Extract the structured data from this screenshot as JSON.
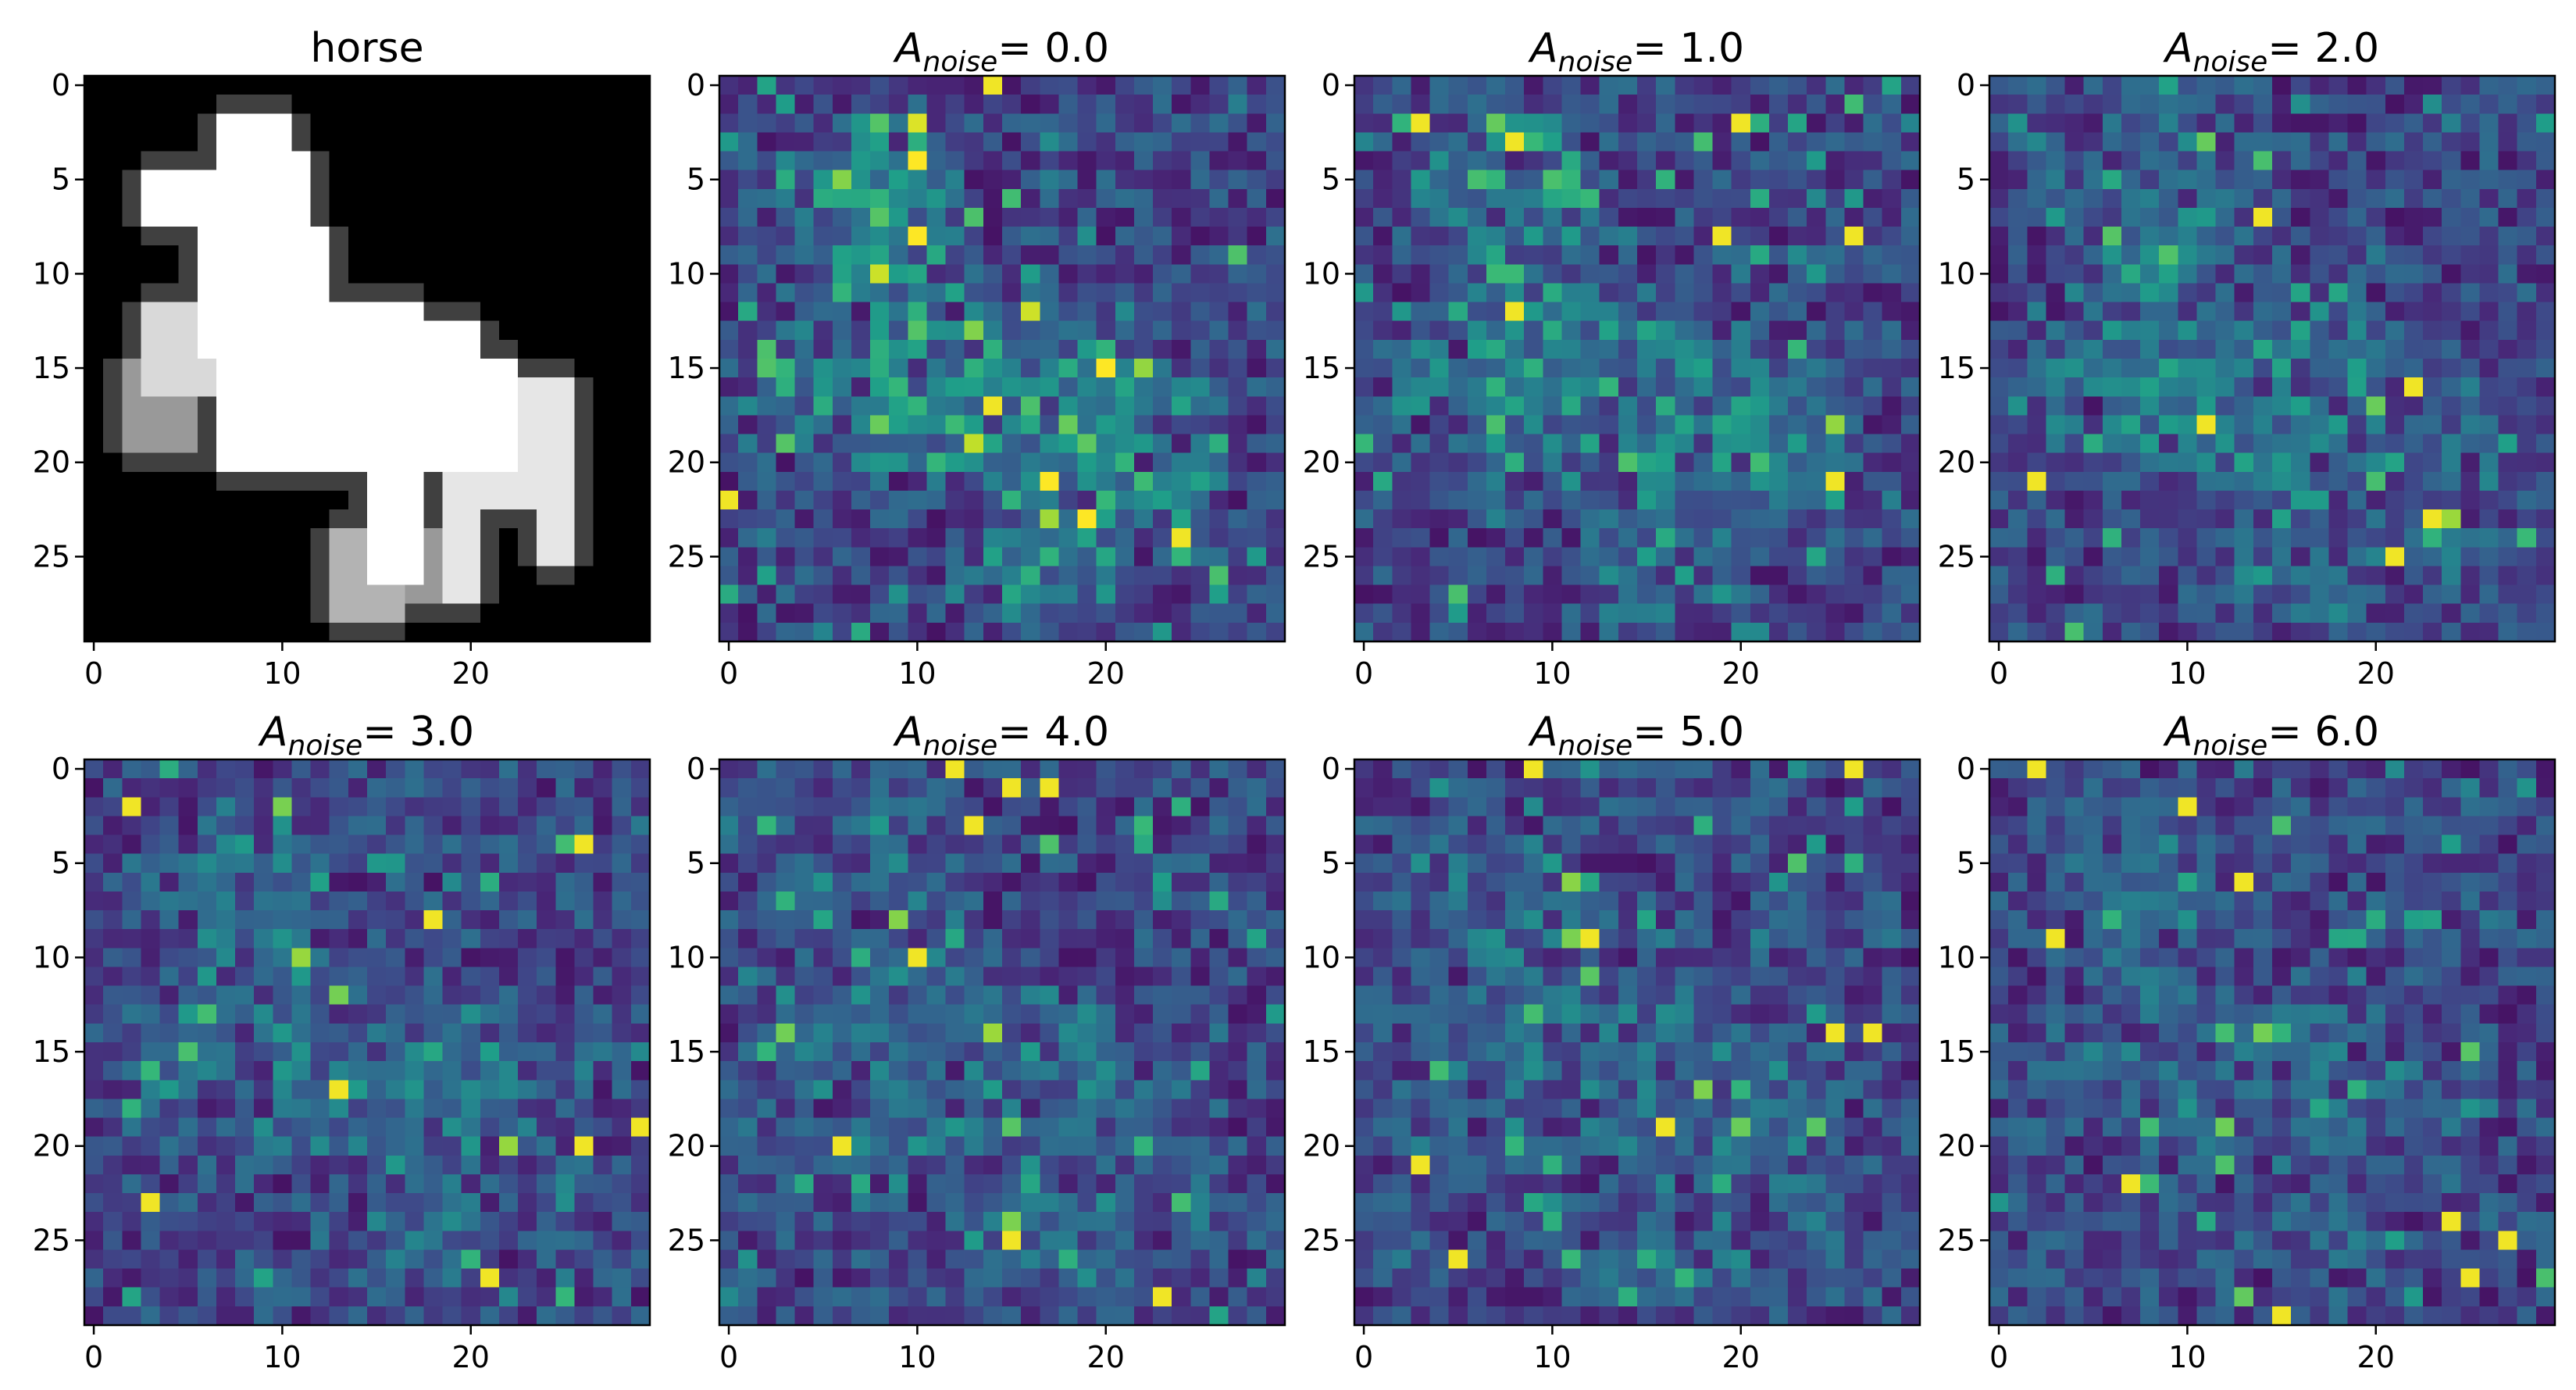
{
  "chart_data": {
    "type": "heatmap",
    "grid_size": 30,
    "x_ticks": [
      0,
      10,
      20
    ],
    "y_ticks": [
      0,
      5,
      10,
      15,
      20,
      25
    ],
    "xlim": [
      -0.5,
      29.5
    ],
    "ylim": [
      29.5,
      -0.5
    ],
    "panels": [
      {
        "kind": "image",
        "colormap": "gray",
        "title": "horse",
        "seed": 0
      },
      {
        "kind": "saliency",
        "colormap": "viridis",
        "title_main": "A",
        "title_sub": "noise",
        "title_rest": "= 0.0",
        "noise": 0.0,
        "seed": 11
      },
      {
        "kind": "saliency",
        "colormap": "viridis",
        "title_main": "A",
        "title_sub": "noise",
        "title_rest": "= 1.0",
        "noise": 1.0,
        "seed": 23
      },
      {
        "kind": "saliency",
        "colormap": "viridis",
        "title_main": "A",
        "title_sub": "noise",
        "title_rest": "= 2.0",
        "noise": 2.0,
        "seed": 37
      },
      {
        "kind": "saliency",
        "colormap": "viridis",
        "title_main": "A",
        "title_sub": "noise",
        "title_rest": "= 3.0",
        "noise": 3.0,
        "seed": 41
      },
      {
        "kind": "saliency",
        "colormap": "viridis",
        "title_main": "A",
        "title_sub": "noise",
        "title_rest": "= 4.0",
        "noise": 4.0,
        "seed": 53
      },
      {
        "kind": "saliency",
        "colormap": "viridis",
        "title_main": "A",
        "title_sub": "noise",
        "title_rest": "= 5.0",
        "noise": 5.0,
        "seed": 67
      },
      {
        "kind": "saliency",
        "colormap": "viridis",
        "title_main": "A",
        "title_sub": "noise",
        "title_rest": "= 6.0",
        "noise": 6.0,
        "seed": 79
      }
    ]
  },
  "colors": {
    "viridis": [
      "#440154",
      "#482878",
      "#3e4989",
      "#31688e",
      "#26828e",
      "#1f9e89",
      "#35b779",
      "#6ece58",
      "#b5de2b",
      "#fde725"
    ],
    "gray_low": "#000000",
    "gray_high": "#ffffff"
  }
}
